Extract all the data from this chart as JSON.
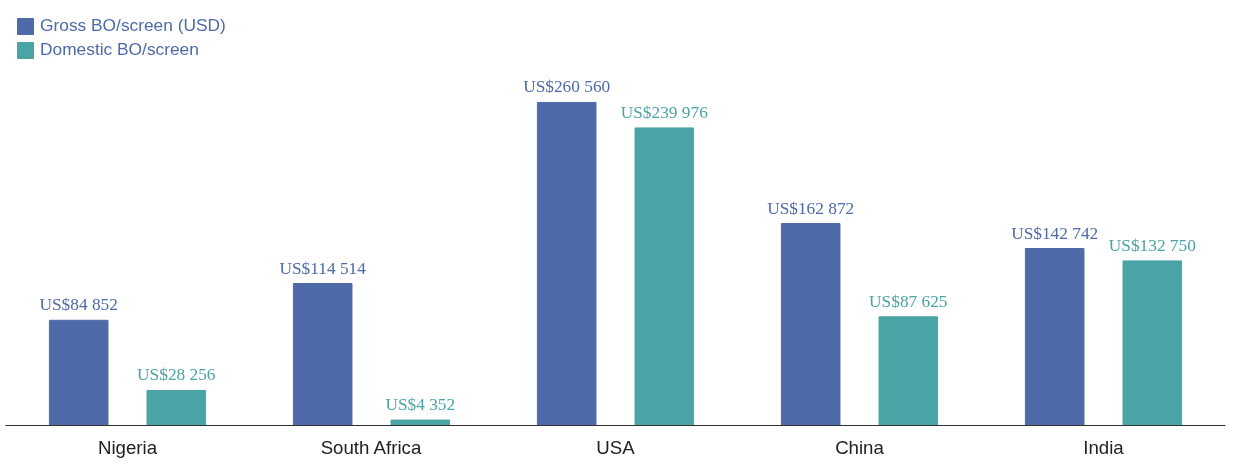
{
  "chart_data": {
    "type": "bar",
    "categories": [
      "Nigeria",
      "South Africa",
      "USA",
      "China",
      "India"
    ],
    "series": [
      {
        "name": "Gross BO/screen (USD)",
        "color": "#4e6aa8",
        "values": [
          84852,
          114514,
          260560,
          162872,
          142742
        ],
        "value_labels": [
          "US$84 852",
          "US$114 514",
          "US$260 560",
          "US$162 872",
          "US$142 742"
        ]
      },
      {
        "name": "Domestic BO/screen",
        "color": "#4aa3a5",
        "values": [
          28256,
          4352,
          239976,
          87625,
          132750
        ],
        "value_labels": [
          "US$28 256",
          "US$4 352",
          "US$239 976",
          "US$87 625",
          "US$132 750"
        ]
      }
    ],
    "legend": "top left",
    "grid": false
  }
}
